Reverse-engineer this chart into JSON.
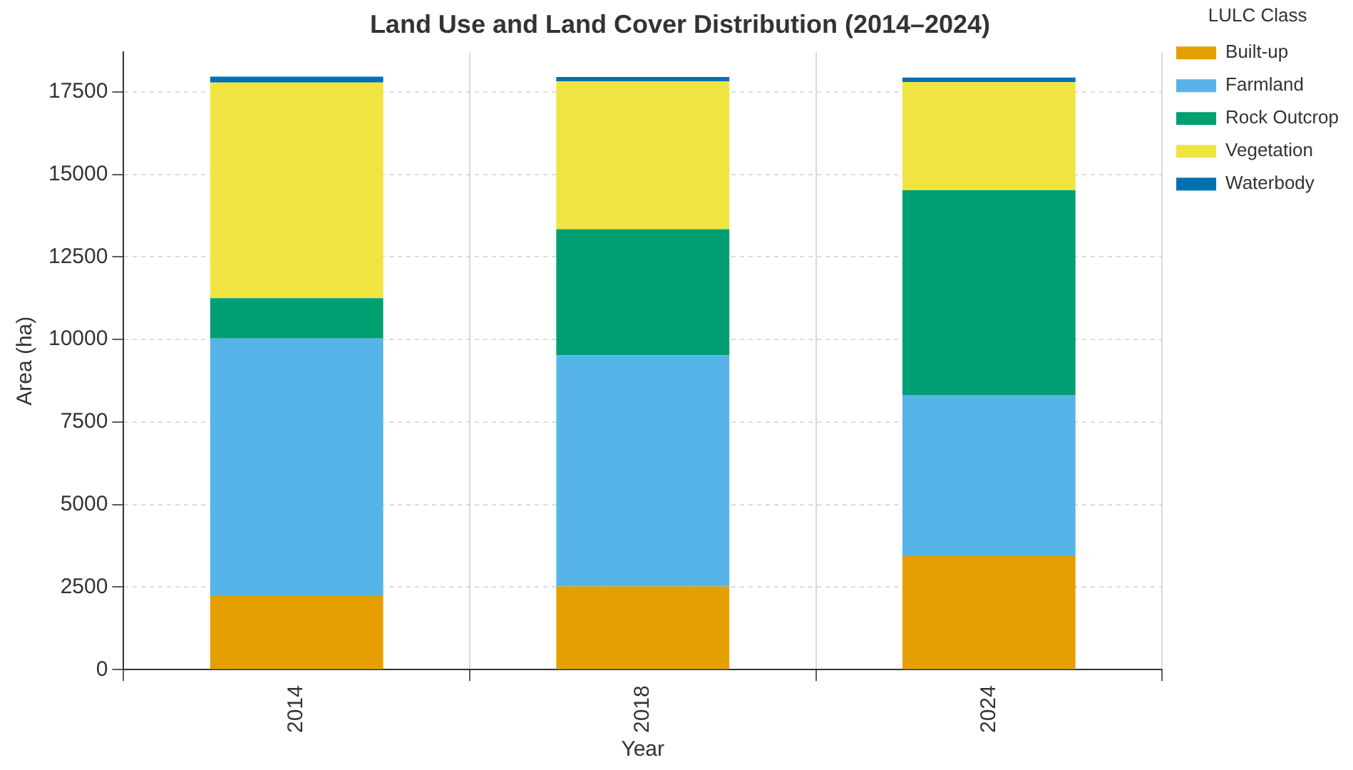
{
  "chart_data": {
    "type": "bar",
    "title": "Land Use and Land Cover Distribution (2014–2024)",
    "xlabel": "Year",
    "ylabel": "Area (ha)",
    "legend_title": "LULC Class",
    "categories": [
      "2014",
      "2018",
      "2024"
    ],
    "stacked": true,
    "series": [
      {
        "name": "Built-up",
        "color": "#e69f00",
        "values": [
          2230,
          2520,
          3440
        ]
      },
      {
        "name": "Farmland",
        "color": "#56b4e9",
        "values": [
          7800,
          7000,
          4880
        ]
      },
      {
        "name": "Rock Outcrop",
        "color": "#009e73",
        "values": [
          1220,
          3820,
          6200
        ]
      },
      {
        "name": "Vegetation",
        "color": "#f0e442",
        "values": [
          6530,
          4480,
          3280
        ]
      },
      {
        "name": "Waterbody",
        "color": "#0072b2",
        "values": [
          180,
          130,
          130
        ]
      }
    ],
    "ylim": [
      0,
      18700
    ],
    "yticks": [
      0,
      2500,
      5000,
      7500,
      10000,
      12500,
      15000,
      17500
    ],
    "grid": true,
    "legend": "top right"
  }
}
